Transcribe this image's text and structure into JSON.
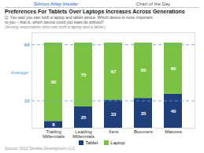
{
  "chart_data": {
    "type": "bar",
    "stacked": true,
    "header": [
      "Silicon Alley Insider",
      "Chart of the Day"
    ],
    "title": "Preferences For Tablets Over Laptops Increases Across Generations",
    "subtitle": [
      "Q: You said you own both a laptop and tablet device. Which device is more important",
      "to you – that is, which device could you least do without?",
      "(Among respondents who own both a laptop and a tablet.)"
    ],
    "source": "Source: 2012 Deloitte Development LLC",
    "categories": [
      "Trailing\nMillennials",
      "Leading\nMillennials",
      "Xers",
      "Boomers",
      "Matures"
    ],
    "series": [
      {
        "name": "Tablet",
        "color": "#1e3f7a",
        "values": [
          8,
          25,
          33,
          35,
          40
        ]
      },
      {
        "name": "Laptop",
        "color": "#7cc242",
        "values": [
          92,
          75,
          67,
          65,
          60
        ]
      }
    ],
    "ylim": [
      0,
      112
    ],
    "data_labels": true,
    "tick_labels": "x",
    "grid": false,
    "legend": "bottom",
    "averages": {
      "label": "Average:",
      "color": "#5ba3d9",
      "values": [
        32,
        66
      ]
    }
  }
}
